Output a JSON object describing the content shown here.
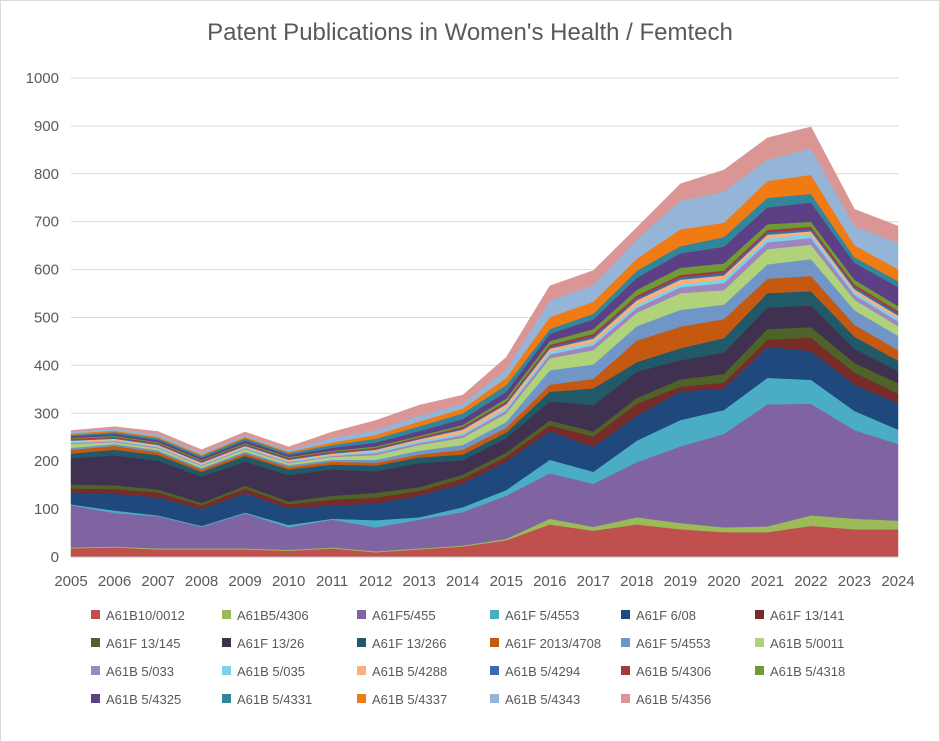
{
  "chart_data": {
    "type": "area",
    "stacked": true,
    "title": "Patent Publications in Women's Health / Femtech",
    "x": [
      "2005",
      "2006",
      "2007",
      "2008",
      "2009",
      "2010",
      "2011",
      "2012",
      "2013",
      "2014",
      "2015",
      "2016",
      "2017",
      "2018",
      "2019",
      "2020",
      "2021",
      "2022",
      "2023",
      "2024"
    ],
    "yticks": [
      "0",
      "100",
      "200",
      "300",
      "400",
      "500",
      "600",
      "700",
      "800",
      "900",
      "1000"
    ],
    "ylim": [
      0,
      1000
    ],
    "grid": true,
    "legend_position": "bottom",
    "series": [
      {
        "name": "A61B10/0012",
        "color": "#c0504d",
        "values": [
          18,
          20,
          16,
          16,
          16,
          13,
          18,
          10,
          16,
          22,
          35,
          68,
          55,
          68,
          58,
          52,
          52,
          65,
          58,
          58
        ]
      },
      {
        "name": "A61B5/4306",
        "color": "#9bbb59",
        "values": [
          2,
          2,
          2,
          2,
          2,
          2,
          2,
          2,
          2,
          2,
          3,
          12,
          8,
          15,
          13,
          10,
          12,
          22,
          22,
          18
        ]
      },
      {
        "name": "A61F5/455",
        "color": "#8064a2",
        "values": [
          88,
          70,
          67,
          45,
          73,
          47,
          58,
          50,
          60,
          70,
          90,
          95,
          90,
          115,
          160,
          195,
          255,
          233,
          185,
          160
        ]
      },
      {
        "name": "A61F 5/4553",
        "color": "#4bacc6",
        "values": [
          2,
          5,
          2,
          2,
          2,
          5,
          2,
          15,
          5,
          10,
          12,
          28,
          25,
          45,
          55,
          50,
          55,
          50,
          40,
          30
        ]
      },
      {
        "name": "A61F 6/08",
        "color": "#1f497d",
        "values": [
          25,
          35,
          38,
          35,
          40,
          35,
          28,
          35,
          45,
          50,
          60,
          60,
          52,
          52,
          60,
          45,
          65,
          60,
          55,
          55
        ]
      },
      {
        "name": "A61F 13/141",
        "color": "#772c2a",
        "values": [
          8,
          10,
          10,
          8,
          10,
          8,
          12,
          12,
          10,
          10,
          10,
          12,
          22,
          25,
          10,
          12,
          15,
          28,
          25,
          20
        ]
      },
      {
        "name": "A61F 13/145",
        "color": "#4f6228",
        "values": [
          8,
          8,
          6,
          5,
          6,
          6,
          8,
          10,
          8,
          8,
          8,
          10,
          10,
          12,
          15,
          18,
          22,
          22,
          20,
          22
        ]
      },
      {
        "name": "A61F 13/26",
        "color": "#403151",
        "values": [
          55,
          62,
          60,
          55,
          50,
          55,
          55,
          45,
          50,
          30,
          30,
          40,
          55,
          55,
          40,
          45,
          45,
          45,
          30,
          25
        ]
      },
      {
        "name": "A61F 13/266",
        "color": "#215968",
        "values": [
          10,
          12,
          12,
          10,
          12,
          12,
          10,
          12,
          12,
          12,
          12,
          20,
          35,
          20,
          25,
          30,
          30,
          30,
          25,
          22
        ]
      },
      {
        "name": "A61F 2013/4708",
        "color": "#c65911",
        "values": [
          8,
          8,
          6,
          5,
          5,
          5,
          6,
          6,
          6,
          10,
          10,
          15,
          20,
          45,
          45,
          40,
          30,
          32,
          25,
          22
        ]
      },
      {
        "name": "A61F 5/4553",
        "color": "#7096c8",
        "values": [
          4,
          4,
          4,
          3,
          4,
          4,
          4,
          6,
          8,
          10,
          12,
          30,
          30,
          30,
          35,
          30,
          30,
          35,
          30,
          30
        ]
      },
      {
        "name": "A61B 5/0011",
        "color": "#afd27a",
        "values": [
          8,
          4,
          4,
          4,
          5,
          4,
          6,
          10,
          12,
          15,
          18,
          25,
          30,
          28,
          35,
          30,
          32,
          30,
          22,
          20
        ]
      },
      {
        "name": "A61B 5/033",
        "color": "#9f86c0",
        "values": [
          2,
          2,
          2,
          2,
          2,
          2,
          2,
          4,
          4,
          5,
          6,
          8,
          10,
          10,
          12,
          15,
          14,
          14,
          10,
          10
        ]
      },
      {
        "name": "A61B 5/035",
        "color": "#7fd1e8",
        "values": [
          2,
          2,
          2,
          2,
          2,
          2,
          2,
          4,
          4,
          4,
          5,
          6,
          6,
          6,
          6,
          8,
          8,
          8,
          6,
          6
        ]
      },
      {
        "name": "A61B 5/4288",
        "color": "#f9b07a",
        "values": [
          3,
          3,
          3,
          3,
          3,
          3,
          3,
          3,
          4,
          8,
          8,
          6,
          8,
          10,
          10,
          8,
          8,
          6,
          6,
          6
        ]
      },
      {
        "name": "A61B 5/4294",
        "color": "#3b6ab0",
        "values": [
          2,
          2,
          2,
          2,
          2,
          2,
          2,
          2,
          2,
          3,
          3,
          4,
          5,
          5,
          5,
          5,
          5,
          5,
          5,
          5
        ]
      },
      {
        "name": "A61B 5/4306",
        "color": "#a33a36",
        "values": [
          2,
          2,
          2,
          2,
          2,
          2,
          2,
          2,
          2,
          3,
          3,
          4,
          5,
          5,
          5,
          5,
          5,
          5,
          5,
          5
        ]
      },
      {
        "name": "A61B 5/4318",
        "color": "#6f9a35",
        "values": [
          2,
          2,
          2,
          2,
          2,
          2,
          2,
          3,
          3,
          4,
          6,
          8,
          10,
          12,
          15,
          15,
          12,
          10,
          10,
          10
        ]
      },
      {
        "name": "A61B 5/4325",
        "color": "#5c3f84",
        "values": [
          3,
          4,
          4,
          4,
          5,
          4,
          6,
          8,
          10,
          12,
          14,
          15,
          20,
          25,
          30,
          35,
          35,
          40,
          35,
          40
        ]
      },
      {
        "name": "A61B 5/4331",
        "color": "#31869b",
        "values": [
          3,
          4,
          4,
          4,
          5,
          4,
          6,
          8,
          10,
          12,
          14,
          10,
          12,
          15,
          15,
          20,
          20,
          18,
          12,
          12
        ]
      },
      {
        "name": "A61B 5/4337",
        "color": "#f07b13",
        "values": [
          3,
          3,
          3,
          3,
          3,
          3,
          5,
          8,
          10,
          10,
          15,
          25,
          25,
          25,
          35,
          30,
          35,
          40,
          25,
          25
        ]
      },
      {
        "name": "A61B 5/4343",
        "color": "#94b4d8",
        "values": [
          4,
          4,
          5,
          4,
          4,
          4,
          10,
          10,
          12,
          10,
          18,
          35,
          35,
          40,
          60,
          65,
          45,
          55,
          40,
          55
        ]
      },
      {
        "name": "A61B 5/4356",
        "color": "#da9694",
        "values": [
          2,
          4,
          6,
          6,
          6,
          6,
          12,
          20,
          22,
          18,
          25,
          30,
          30,
          25,
          35,
          45,
          45,
          45,
          35,
          35
        ]
      }
    ]
  }
}
